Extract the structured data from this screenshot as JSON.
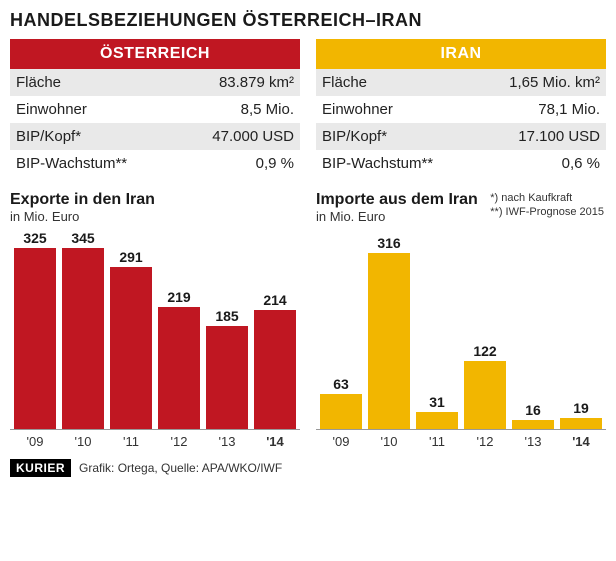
{
  "title": "HANDELSBEZIEHUNGEN ÖSTERREICH–IRAN",
  "panels": [
    {
      "country": "ÖSTERREICH",
      "header_bg": "#c01722",
      "rows": [
        {
          "label": "Fläche",
          "value": "83.879 km²"
        },
        {
          "label": "Einwohner",
          "value": "8,5 Mio."
        },
        {
          "label": "BIP/Kopf*",
          "value": "47.000 USD"
        },
        {
          "label": "BIP-Wachstum**",
          "value": "0,9 %"
        }
      ],
      "chart": {
        "title": "Exporte in den Iran",
        "subtitle": "in Mio. Euro",
        "type": "bar",
        "bar_color": "#c01722",
        "categories": [
          "'09",
          "'10",
          "'11",
          "'12",
          "'13",
          "'14"
        ],
        "values": [
          325,
          345,
          291,
          219,
          185,
          214
        ],
        "ymax": 360,
        "bold_last": true,
        "show_footnotes": false
      }
    },
    {
      "country": "IRAN",
      "header_bg": "#f2b600",
      "rows": [
        {
          "label": "Fläche",
          "value": "1,65 Mio. km²"
        },
        {
          "label": "Einwohner",
          "value": "78,1 Mio."
        },
        {
          "label": "BIP/Kopf*",
          "value": "17.100 USD"
        },
        {
          "label": "BIP-Wachstum**",
          "value": "0,6 %"
        }
      ],
      "chart": {
        "title": "Importe aus dem Iran",
        "subtitle": "in Mio. Euro",
        "type": "bar",
        "bar_color": "#f2b600",
        "categories": [
          "'09",
          "'10",
          "'11",
          "'12",
          "'13",
          "'14"
        ],
        "values": [
          63,
          316,
          31,
          122,
          16,
          19
        ],
        "ymax": 360,
        "bold_last": true,
        "show_footnotes": true
      }
    }
  ],
  "footnotes": {
    "line1": "*) nach Kaufkraft",
    "line2": "**) IWF-Prognose 2015"
  },
  "footer": {
    "logo": "KURIER",
    "credit": "Grafik:  Ortega, Quelle: APA/WKO/IWF"
  },
  "style": {
    "row_odd_bg": "#e9e9e9",
    "row_even_bg": "#ffffff",
    "text_color": "#1a1a1a",
    "label_fontsize": 14,
    "title_fontsize": 18
  }
}
